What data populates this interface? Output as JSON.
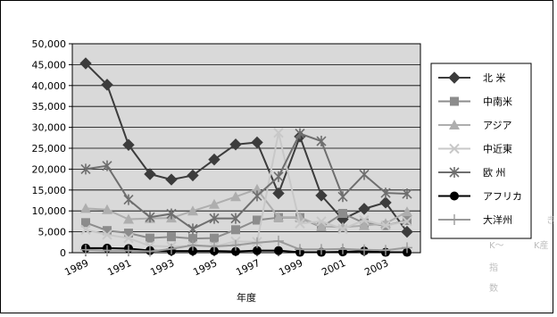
{
  "chart_data": {
    "type": "line",
    "xlabel": "年度",
    "ylabel": "",
    "ylim": [
      0,
      50000
    ],
    "y_ticks": [
      "0",
      "5,000",
      "10,000",
      "15,000",
      "20,000",
      "25,000",
      "30,000",
      "35,000",
      "40,000",
      "45,000",
      "50,000"
    ],
    "x_tick_labels": [
      "1989",
      "1991",
      "1993",
      "1995",
      "1997",
      "1999",
      "2001",
      "2003"
    ],
    "x": [
      1989,
      1990,
      1991,
      1992,
      1993,
      1994,
      1995,
      1996,
      1997,
      1998,
      1999,
      2000,
      2001,
      2002,
      2003,
      2004
    ],
    "grid": "horizontal",
    "legend_position": "right",
    "plot_background": "#d9d9d9",
    "series": [
      {
        "name": "北 米",
        "marker": "diamond",
        "color": "#3c3c3c",
        "values": [
          45300,
          40200,
          25800,
          18800,
          17500,
          18500,
          22300,
          25900,
          26400,
          14200,
          27800,
          13700,
          8000,
          10500,
          12000,
          5000
        ]
      },
      {
        "name": "中南米",
        "marker": "square",
        "color": "#8c8c8c",
        "values": [
          7200,
          5300,
          4700,
          3500,
          3800,
          3400,
          3500,
          5500,
          7800,
          8400,
          8400,
          6100,
          9400,
          7100,
          6500,
          7700
        ]
      },
      {
        "name": "アジア",
        "marker": "triangle",
        "color": "#aeaeae",
        "values": [
          10600,
          10300,
          8000,
          8200,
          8300,
          10000,
          11600,
          13400,
          15200,
          8500,
          8500,
          6300,
          6100,
          6500,
          7000,
          9800
        ]
      },
      {
        "name": "中近東",
        "marker": "x",
        "color": "#c8c8c8",
        "values": [
          5500,
          4300,
          3500,
          1600,
          1500,
          1600,
          1500,
          2700,
          2600,
          28700,
          7000,
          7500,
          5700,
          7800,
          6500,
          7500
        ]
      },
      {
        "name": "欧 州",
        "marker": "star",
        "color": "#6e6e6e",
        "values": [
          20000,
          20800,
          12700,
          8500,
          9300,
          5700,
          8200,
          8200,
          13600,
          18200,
          28500,
          26700,
          13400,
          18700,
          14300,
          14100
        ]
      },
      {
        "name": "アフリカ",
        "marker": "circle",
        "color": "#000000",
        "values": [
          1100,
          1100,
          1000,
          500,
          400,
          400,
          400,
          300,
          500,
          500,
          100,
          100,
          200,
          400,
          100,
          100
        ]
      },
      {
        "name": "大洋州",
        "marker": "plus",
        "color": "#9a9a9a",
        "values": [
          700,
          500,
          500,
          300,
          900,
          1800,
          1500,
          1800,
          2400,
          2800,
          800,
          800,
          900,
          700,
          600,
          1200
        ]
      }
    ]
  },
  "ghost_text": {
    "a": "き",
    "b": "K～",
    "c": "K産",
    "d": "指",
    "e": "数"
  }
}
